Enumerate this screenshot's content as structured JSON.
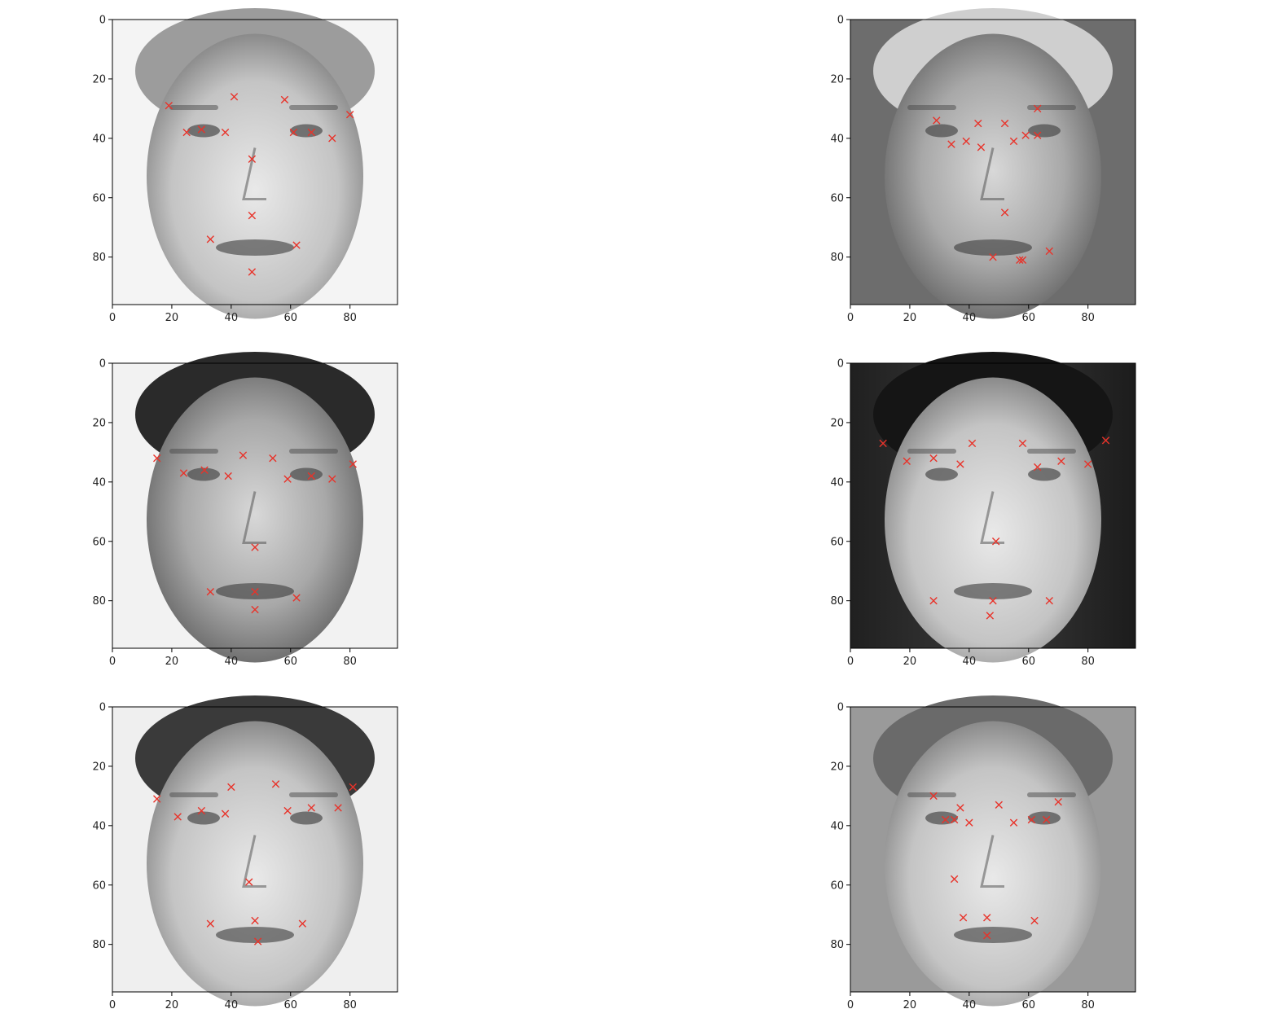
{
  "chart_data": [
    {
      "type": "scatter",
      "image": "grayscale-face-photo",
      "xlim": [
        0,
        96
      ],
      "ylim": [
        96,
        0
      ],
      "xticks": [
        "0",
        "20",
        "40",
        "60",
        "80"
      ],
      "yticks": [
        "0",
        "20",
        "40",
        "60",
        "80"
      ],
      "marker": "x",
      "marker_color": "#e8332a",
      "points": [
        [
          19,
          29
        ],
        [
          41,
          26
        ],
        [
          58,
          27
        ],
        [
          80,
          32
        ],
        [
          25,
          38
        ],
        [
          30,
          37
        ],
        [
          38,
          38
        ],
        [
          61,
          38
        ],
        [
          67,
          38
        ],
        [
          74,
          40
        ],
        [
          47,
          47
        ],
        [
          47,
          66
        ],
        [
          33,
          74
        ],
        [
          62,
          76
        ],
        [
          47,
          85
        ]
      ]
    },
    {
      "type": "scatter",
      "image": "grayscale-face-photo",
      "xlim": [
        0,
        96
      ],
      "ylim": [
        96,
        0
      ],
      "xticks": [
        "0",
        "20",
        "40",
        "60",
        "80"
      ],
      "yticks": [
        "0",
        "20",
        "40",
        "60",
        "80"
      ],
      "marker": "x",
      "marker_color": "#e8332a",
      "points": [
        [
          29,
          34
        ],
        [
          43,
          35
        ],
        [
          52,
          35
        ],
        [
          63,
          30
        ],
        [
          34,
          42
        ],
        [
          39,
          41
        ],
        [
          44,
          43
        ],
        [
          55,
          41
        ],
        [
          59,
          39
        ],
        [
          63,
          39
        ],
        [
          52,
          65
        ],
        [
          48,
          80
        ],
        [
          58,
          81
        ],
        [
          57,
          81
        ],
        [
          67,
          78
        ]
      ]
    },
    {
      "type": "scatter",
      "image": "grayscale-face-photo",
      "xlim": [
        0,
        96
      ],
      "ylim": [
        96,
        0
      ],
      "xticks": [
        "0",
        "20",
        "40",
        "60",
        "80"
      ],
      "yticks": [
        "0",
        "20",
        "40",
        "60",
        "80"
      ],
      "marker": "x",
      "marker_color": "#e8332a",
      "points": [
        [
          15,
          32
        ],
        [
          24,
          37
        ],
        [
          31,
          36
        ],
        [
          39,
          38
        ],
        [
          44,
          31
        ],
        [
          54,
          32
        ],
        [
          59,
          39
        ],
        [
          67,
          38
        ],
        [
          74,
          39
        ],
        [
          81,
          34
        ],
        [
          48,
          62
        ],
        [
          33,
          77
        ],
        [
          48,
          77
        ],
        [
          48,
          83
        ],
        [
          62,
          79
        ]
      ]
    },
    {
      "type": "scatter",
      "image": "grayscale-face-photo",
      "xlim": [
        0,
        96
      ],
      "ylim": [
        96,
        0
      ],
      "xticks": [
        "0",
        "20",
        "40",
        "60",
        "80"
      ],
      "yticks": [
        "0",
        "20",
        "40",
        "60",
        "80"
      ],
      "marker": "x",
      "marker_color": "#e8332a",
      "points": [
        [
          11,
          27
        ],
        [
          19,
          33
        ],
        [
          28,
          32
        ],
        [
          37,
          34
        ],
        [
          41,
          27
        ],
        [
          58,
          27
        ],
        [
          63,
          35
        ],
        [
          71,
          33
        ],
        [
          80,
          34
        ],
        [
          86,
          26
        ],
        [
          49,
          60
        ],
        [
          28,
          80
        ],
        [
          48,
          80
        ],
        [
          47,
          85
        ],
        [
          67,
          80
        ]
      ]
    },
    {
      "type": "scatter",
      "image": "grayscale-face-photo",
      "xlim": [
        0,
        96
      ],
      "ylim": [
        96,
        0
      ],
      "xticks": [
        "0",
        "20",
        "40",
        "60",
        "80"
      ],
      "yticks": [
        "0",
        "20",
        "40",
        "60",
        "80"
      ],
      "marker": "x",
      "marker_color": "#e8332a",
      "points": [
        [
          15,
          31
        ],
        [
          22,
          37
        ],
        [
          30,
          35
        ],
        [
          38,
          36
        ],
        [
          40,
          27
        ],
        [
          55,
          26
        ],
        [
          59,
          35
        ],
        [
          67,
          34
        ],
        [
          76,
          34
        ],
        [
          81,
          27
        ],
        [
          46,
          59
        ],
        [
          33,
          73
        ],
        [
          48,
          72
        ],
        [
          49,
          79
        ],
        [
          64,
          73
        ]
      ]
    },
    {
      "type": "scatter",
      "image": "grayscale-face-photo",
      "xlim": [
        0,
        96
      ],
      "ylim": [
        96,
        0
      ],
      "xticks": [
        "0",
        "20",
        "40",
        "60",
        "80"
      ],
      "yticks": [
        "0",
        "20",
        "40",
        "60",
        "80"
      ],
      "marker": "x",
      "marker_color": "#e8332a",
      "points": [
        [
          28,
          30
        ],
        [
          32,
          38
        ],
        [
          35,
          38
        ],
        [
          37,
          34
        ],
        [
          40,
          39
        ],
        [
          50,
          33
        ],
        [
          55,
          39
        ],
        [
          61,
          38
        ],
        [
          66,
          38
        ],
        [
          70,
          32
        ],
        [
          35,
          58
        ],
        [
          38,
          71
        ],
        [
          46,
          71
        ],
        [
          46,
          77
        ],
        [
          62,
          72
        ]
      ]
    }
  ]
}
